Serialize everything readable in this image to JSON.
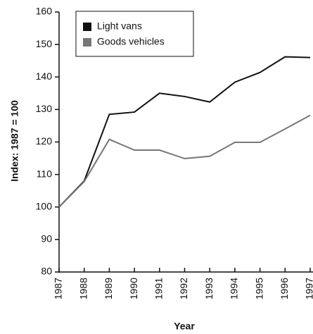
{
  "chart_data": {
    "type": "line",
    "x_label": "Year",
    "y_label": "Index: 1987 = 100",
    "x": [
      1987,
      1988,
      1989,
      1990,
      1991,
      1992,
      1993,
      1994,
      1995,
      1996,
      1997
    ],
    "series": [
      {
        "name": "Light vans",
        "color": "#111111",
        "values": [
          100,
          108,
          128.5,
          129.2,
          135,
          134,
          132.3,
          138.4,
          141.4,
          146.2,
          146
        ]
      },
      {
        "name": "Goods vehicles",
        "color": "#777777",
        "values": [
          100,
          107.8,
          120.8,
          117.5,
          117.5,
          114.9,
          115.6,
          119.9,
          119.9,
          124,
          128.2
        ]
      }
    ],
    "xlim": [
      1987,
      1997
    ],
    "xticks": [
      1987,
      1988,
      1989,
      1990,
      1991,
      1992,
      1993,
      1994,
      1995,
      1996,
      1997
    ],
    "ylim": [
      80,
      160
    ],
    "yticks": [
      80,
      90,
      100,
      110,
      120,
      130,
      140,
      150,
      160
    ],
    "legend": "upper left",
    "grid": false
  }
}
